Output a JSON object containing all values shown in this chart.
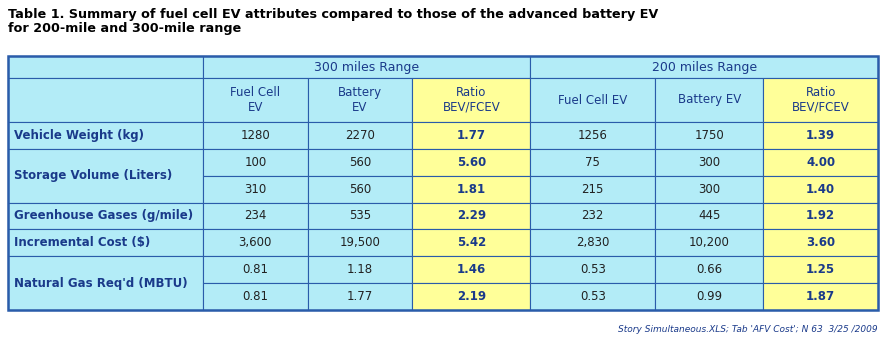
{
  "title_line1": "Table 1. Summary of fuel cell EV attributes compared to those of the advanced battery EV",
  "title_line2": "for 200-mile and 300-mile range",
  "footnote": "Story Simultaneous.XLS; Tab 'AFV Cost'; N 63  3/25 /2009",
  "col_headers_300": [
    "Fuel Cell\nEV",
    "Battery\nEV",
    "Ratio\nBEV/FCEV"
  ],
  "col_headers_200": [
    "Fuel Cell EV",
    "Battery EV",
    "Ratio\nBEV/FCEV"
  ],
  "range_headers": [
    "300 miles Range",
    "200 miles Range"
  ],
  "data": [
    [
      "1280",
      "2270",
      "1.77",
      "1256",
      "1750",
      "1.39"
    ],
    [
      "100",
      "560",
      "5.60",
      "75",
      "300",
      "4.00"
    ],
    [
      "310",
      "560",
      "1.81",
      "215",
      "300",
      "1.40"
    ],
    [
      "234",
      "535",
      "2.29",
      "232",
      "445",
      "1.92"
    ],
    [
      "3,600",
      "19,500",
      "5.42",
      "2,830",
      "10,200",
      "3.60"
    ],
    [
      "0.81",
      "1.18",
      "1.46",
      "0.53",
      "0.66",
      "1.25"
    ],
    [
      "0.81",
      "1.77",
      "2.19",
      "0.53",
      "0.99",
      "1.87"
    ]
  ],
  "row_label_spans": [
    [
      0,
      1,
      "Vehicle Weight (kg)"
    ],
    [
      1,
      3,
      "Storage Volume (Liters)"
    ],
    [
      3,
      4,
      "Greenhouse Gases (g/mile)"
    ],
    [
      4,
      5,
      "Incremental Cost ($)"
    ],
    [
      5,
      7,
      "Natural Gas Req'd (MBTU)"
    ]
  ],
  "bg_light_blue": "#b3ecf7",
  "bg_yellow": "#ffff99",
  "border_color": "#2a5caa",
  "text_color_blue": "#1a3a8a",
  "text_color_dark": "#222222"
}
